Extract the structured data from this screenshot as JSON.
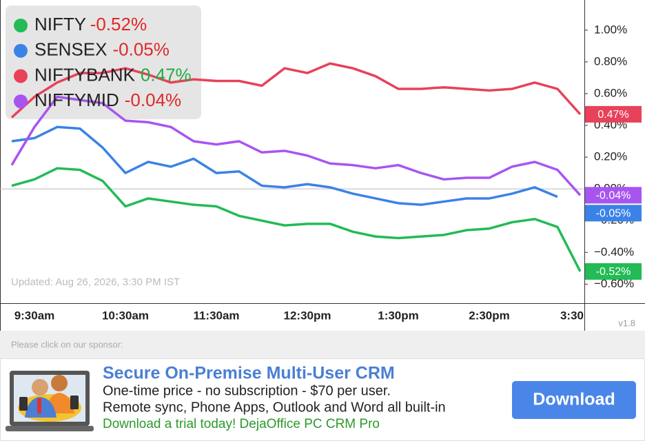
{
  "chart_data": {
    "type": "line",
    "updated": "Updated: Aug 26, 2026, 3:30 PM IST",
    "categories": [
      null,
      "9:30am",
      null,
      null,
      null,
      "10:30am",
      null,
      null,
      null,
      "11:30am",
      null,
      null,
      null,
      "12:30pm",
      null,
      null,
      null,
      "1:30pm",
      null,
      null,
      null,
      "2:30pm",
      null,
      null,
      null,
      "3:30"
    ],
    "ylim": [
      -0.72,
      1.19
    ],
    "yticks": [
      {
        "value": 1.0,
        "label": "1.00%"
      },
      {
        "value": 0.8,
        "label": "0.80%"
      },
      {
        "value": 0.6,
        "label": "0.60%"
      },
      {
        "value": 0.4,
        "label": "0.40%"
      },
      {
        "value": 0.2,
        "label": "0.20%"
      },
      {
        "value": 0,
        "label": "0.00%"
      },
      {
        "value": -0.2,
        "label": "−0.20%"
      },
      {
        "value": -0.4,
        "label": "−0.40%"
      },
      {
        "value": -0.6,
        "label": "−0.60%"
      }
    ],
    "zero_line": true,
    "legend": "upper left",
    "series": [
      {
        "name": "NIFTY",
        "color": "#22bb55",
        "change": -0.52,
        "change_label": "-0.52%",
        "values": [
          0.02,
          0.06,
          0.13,
          0.12,
          0.05,
          -0.11,
          -0.06,
          -0.08,
          -0.1,
          -0.11,
          -0.17,
          -0.2,
          -0.23,
          -0.22,
          -0.22,
          -0.27,
          -0.3,
          -0.31,
          -0.3,
          -0.29,
          -0.26,
          -0.25,
          -0.21,
          -0.19,
          -0.24,
          -0.52
        ]
      },
      {
        "name": "SENSEX",
        "color": "#3b82e6",
        "change": -0.05,
        "change_label": "-0.05%",
        "values": [
          0.3,
          0.32,
          0.39,
          0.38,
          0.26,
          0.1,
          0.17,
          0.14,
          0.19,
          0.1,
          0.11,
          0.02,
          0.01,
          0.03,
          0.01,
          -0.03,
          -0.06,
          -0.09,
          -0.1,
          -0.08,
          -0.06,
          -0.06,
          -0.03,
          0.01,
          -0.05,
          null
        ]
      },
      {
        "name": "NIFTYBANK",
        "color": "#e8415a",
        "change": 0.47,
        "change_label": "0.47%",
        "values": [
          0.45,
          0.58,
          0.67,
          0.73,
          0.73,
          0.76,
          0.72,
          0.67,
          0.69,
          0.68,
          0.68,
          0.65,
          0.76,
          0.73,
          0.79,
          0.76,
          0.71,
          0.63,
          0.63,
          0.64,
          0.63,
          0.62,
          0.63,
          0.67,
          0.63,
          0.47
        ]
      },
      {
        "name": "NIFTYMID",
        "color": "#a855f0",
        "change": -0.04,
        "change_label": "-0.04%",
        "values": [
          0.15,
          0.39,
          0.58,
          0.56,
          0.54,
          0.43,
          0.42,
          0.39,
          0.3,
          0.28,
          0.3,
          0.23,
          0.24,
          0.21,
          0.16,
          0.15,
          0.13,
          0.15,
          0.1,
          0.06,
          0.07,
          0.07,
          0.14,
          0.17,
          0.12,
          -0.04
        ]
      }
    ]
  },
  "version": "v1.8",
  "sponsor": {
    "prompt": "Please click on our sponsor:",
    "title": "Secure On-Premise Multi-User CRM",
    "lines": [
      "One-time price - no subscription - $70 per user.",
      "Remote sync, Phone Apps, Outlook and Word all built-in"
    ],
    "cta": "Download a trial today! DejaOffice PC CRM Pro",
    "button": "Download"
  }
}
